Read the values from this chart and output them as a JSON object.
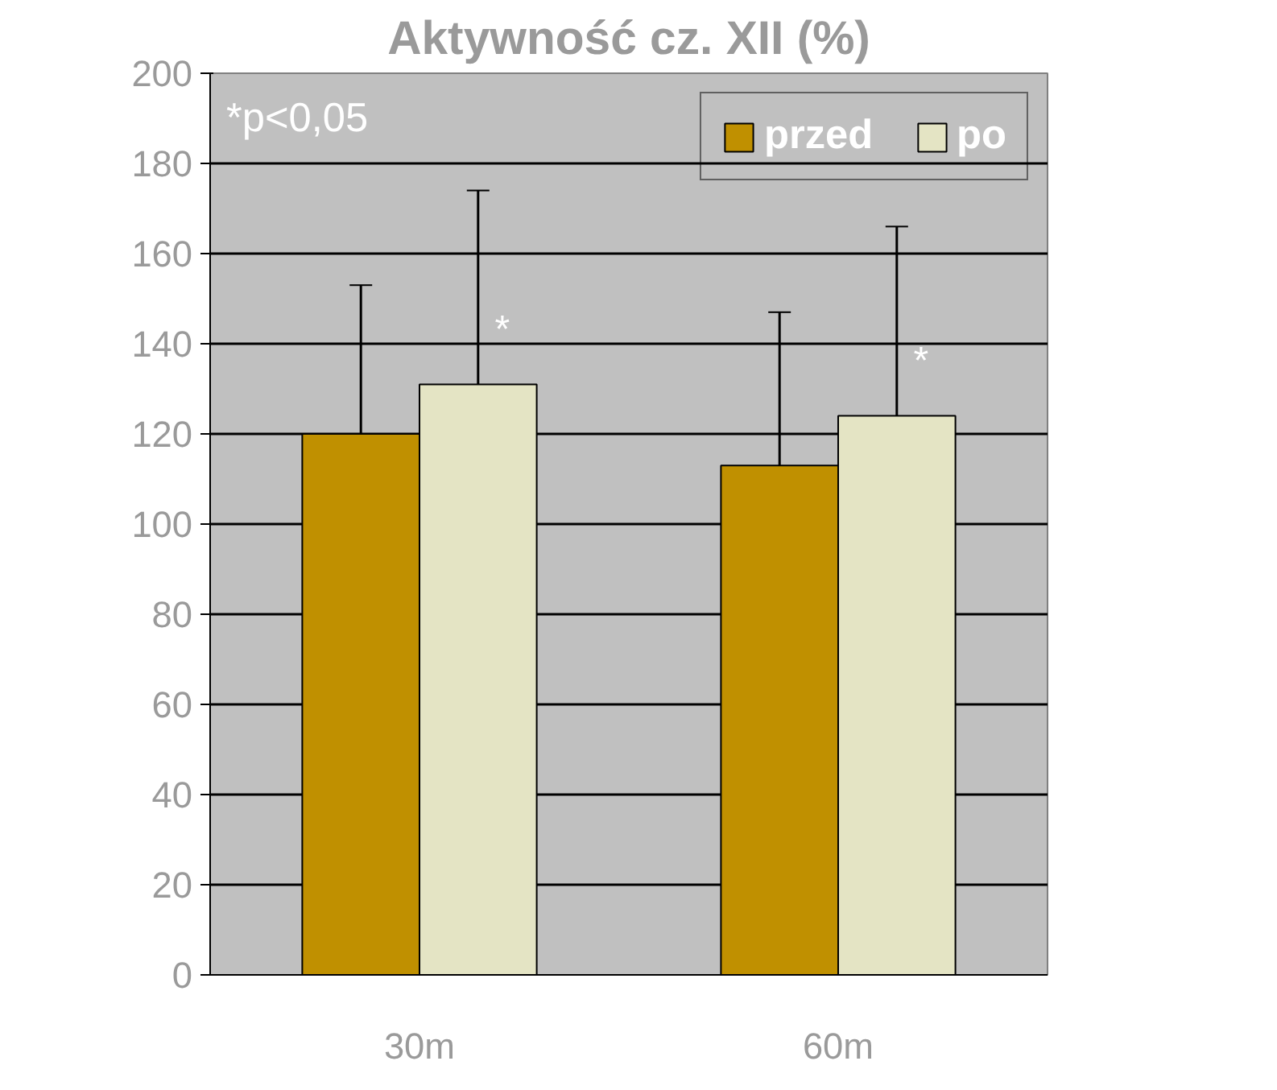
{
  "chart_data": {
    "type": "bar",
    "title": "Aktywność cz. XII (%)",
    "categories": [
      "30m",
      "60m"
    ],
    "series": [
      {
        "name": "przed",
        "color": "#c09000",
        "values": [
          120,
          113
        ],
        "errors": [
          [
            120,
            153
          ],
          [
            113,
            147
          ]
        ]
      },
      {
        "name": "po",
        "color": "#e4e4c4",
        "values": [
          131,
          124
        ],
        "errors": [
          [
            131,
            174
          ],
          [
            124,
            166
          ]
        ]
      }
    ],
    "ylim": [
      0,
      200
    ],
    "yticks": [
      0,
      20,
      40,
      60,
      80,
      100,
      120,
      140,
      160,
      180,
      200
    ],
    "grid": "y",
    "legend": "top right",
    "annotations": [
      "*p<0,05",
      "*",
      "*"
    ]
  }
}
